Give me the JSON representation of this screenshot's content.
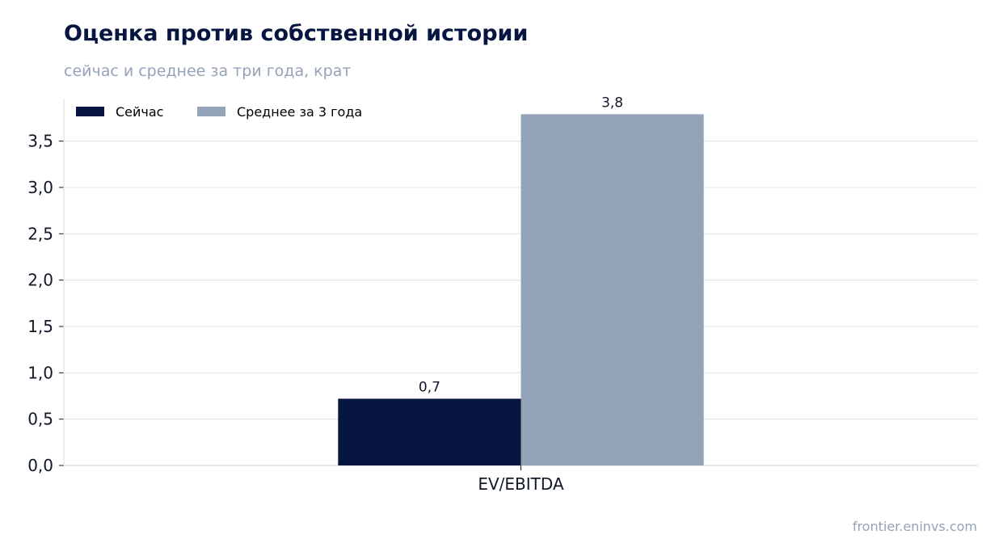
{
  "header": {
    "title": "Оценка против собственной истории",
    "subtitle": "сейчас и среднее за три года, крат"
  },
  "footer": {
    "source": "frontier.eninvs.com"
  },
  "colors": {
    "now": "#071641",
    "avg": "#94a3b8",
    "grid": "#e2e6ee",
    "axis": "#dde3ec",
    "text": "#111827"
  },
  "chart_data": {
    "type": "bar",
    "title": "Оценка против собственной истории",
    "subtitle": "сейчас и среднее за три года, крат",
    "categories": [
      "EV/EBITDA"
    ],
    "series": [
      {
        "name": "Сейчас",
        "values": [
          0.72
        ],
        "label": "0,7",
        "color": "#071641"
      },
      {
        "name": "Среднее за 3 года",
        "values": [
          3.79
        ],
        "label": "3,8",
        "color": "#94a3b8"
      }
    ],
    "ylim": [
      0,
      3.95
    ],
    "yticks": [
      0,
      0.5,
      1.0,
      1.5,
      2.0,
      2.5,
      3.0,
      3.5
    ],
    "ytick_labels": [
      "0,0",
      "0,5",
      "1,0",
      "1,5",
      "2,0",
      "2,5",
      "3,0",
      "3,5"
    ],
    "xlabel": "",
    "ylabel": "",
    "grid": true,
    "legend": "top-left"
  }
}
